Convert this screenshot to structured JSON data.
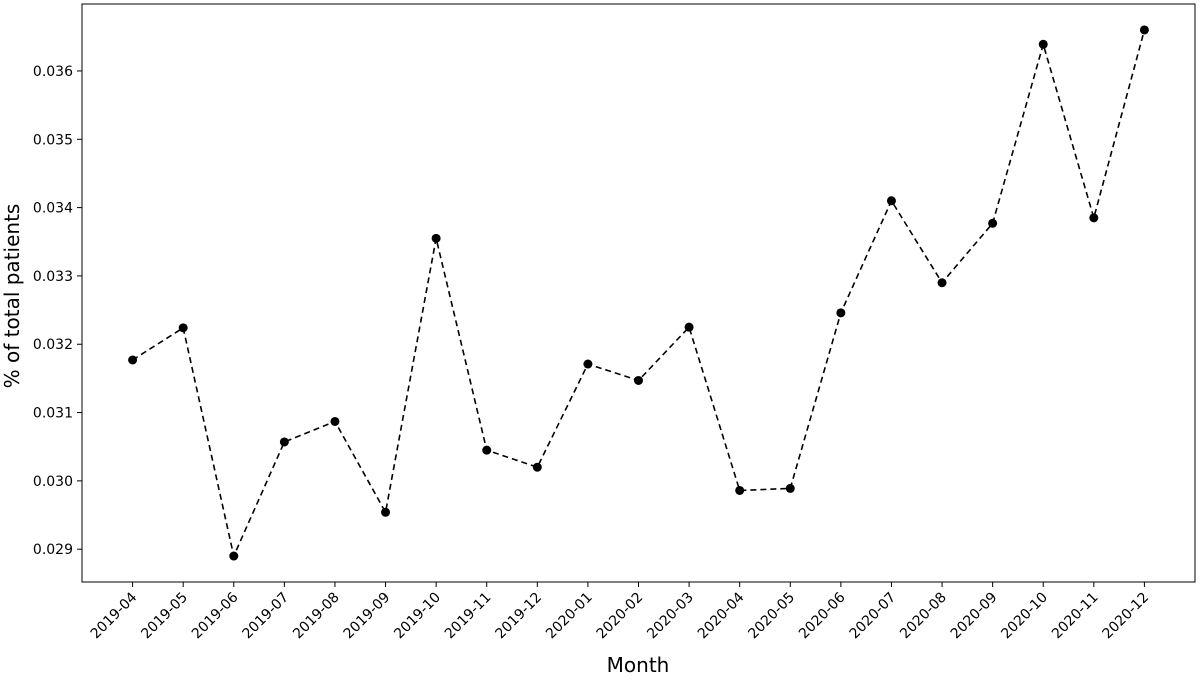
{
  "chart_data": {
    "type": "line",
    "x_label": "Month",
    "y_label": "% of total patients",
    "categories": [
      "2019-04",
      "2019-05",
      "2019-06",
      "2019-07",
      "2019-08",
      "2019-09",
      "2019-10",
      "2019-11",
      "2019-12",
      "2020-01",
      "2020-02",
      "2020-03",
      "2020-04",
      "2020-05",
      "2020-06",
      "2020-07",
      "2020-08",
      "2020-09",
      "2020-10",
      "2020-11",
      "2020-12"
    ],
    "series": [
      {
        "name": "% of total patients",
        "color": "#000000",
        "values": [
          0.03177,
          0.03224,
          0.0289,
          0.03057,
          0.03087,
          0.02954,
          0.03355,
          0.03045,
          0.0302,
          0.03171,
          0.03147,
          0.03225,
          0.02986,
          0.02989,
          0.03246,
          0.0341,
          0.0329,
          0.03377,
          0.03639,
          0.03385,
          0.0366
        ]
      }
    ],
    "ylim": [
      0.02852,
      0.03698
    ],
    "yticks": [
      0.029,
      {
        "value": 0.03,
        "label": "0.030"
      },
      0.031,
      0.032,
      0.033,
      0.034,
      0.035,
      0.036
    ],
    "grid": false
  }
}
